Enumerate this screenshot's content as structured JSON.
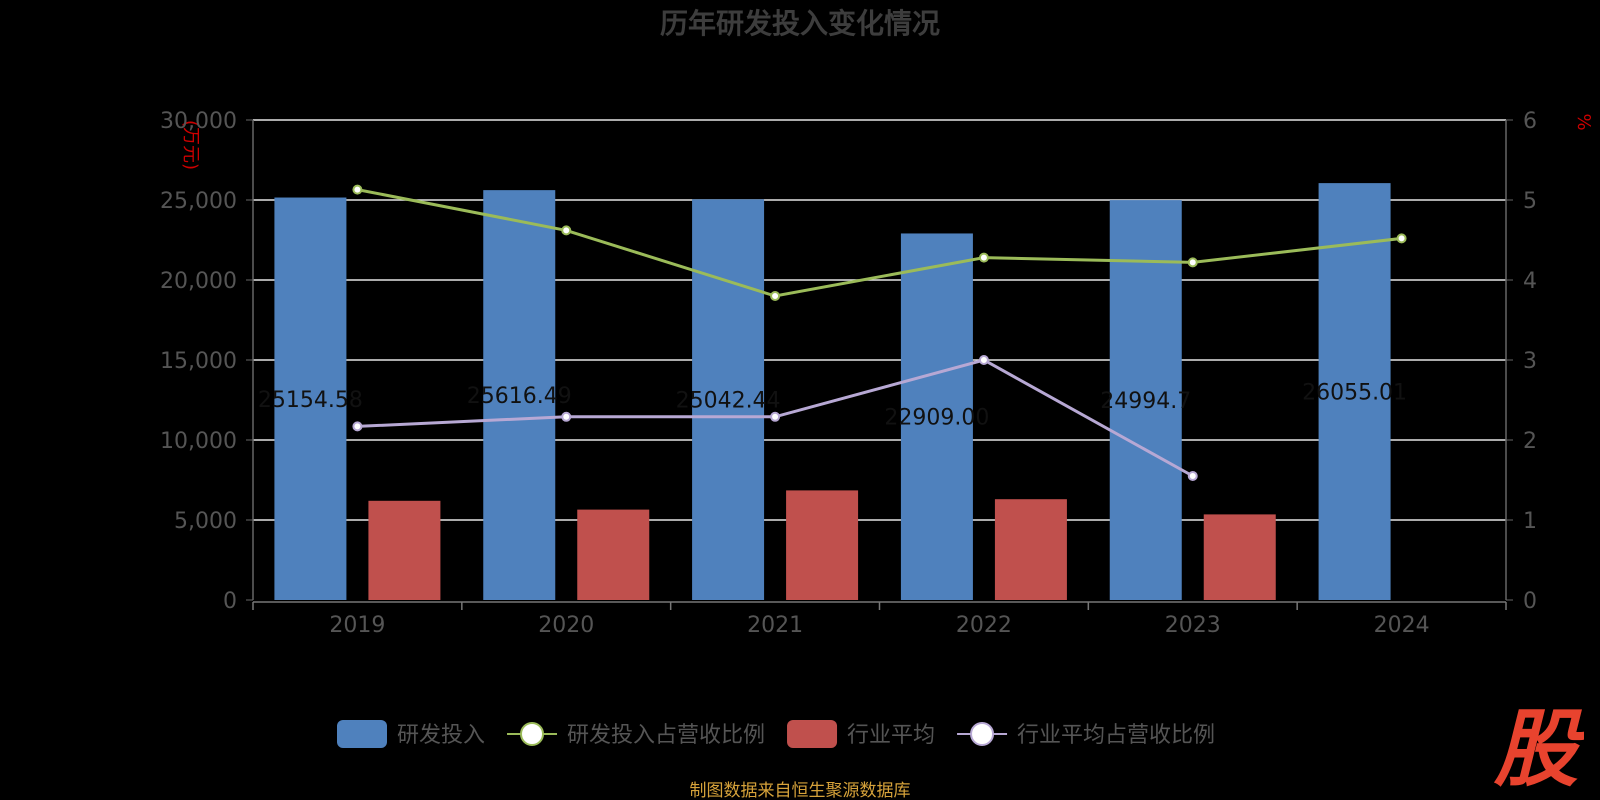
{
  "chart_data": {
    "type": "bar",
    "title": "历年研发投入变化情况",
    "left_axis_unit": "(万元)",
    "right_axis_unit": "%",
    "categories": [
      "2019",
      "2020",
      "2021",
      "2022",
      "2023",
      "2024"
    ],
    "ylim_left": [
      0,
      30000
    ],
    "yticks_left": [
      "0",
      "5,000",
      "10,000",
      "15,000",
      "20,000",
      "25,000",
      "30,000"
    ],
    "ylim_right": [
      0,
      6
    ],
    "yticks_right": [
      "0",
      "1",
      "2",
      "3",
      "4",
      "5",
      "6"
    ],
    "series": [
      {
        "name": "研发投入",
        "kind": "bar",
        "axis": "left",
        "color": "#4f81bd",
        "values": [
          25154.58,
          25616.49,
          25042.44,
          22909.0,
          24994.7,
          26055.01
        ],
        "labels": [
          "25154.58",
          "25616.49",
          "25042.44",
          "22909.00",
          "24994.7",
          "26055.01"
        ]
      },
      {
        "name": "研发投入占营收比例",
        "kind": "line",
        "axis": "right",
        "color": "#9bbb59",
        "values": [
          5.13,
          4.62,
          3.8,
          4.28,
          4.22,
          4.52
        ]
      },
      {
        "name": "行业平均",
        "kind": "bar",
        "axis": "left",
        "color": "#c0504d",
        "values": [
          6200,
          5650,
          6850,
          6300,
          5350,
          null
        ]
      },
      {
        "name": "行业平均占营收比例",
        "kind": "line",
        "axis": "right",
        "color": "#b7a8d4",
        "values": [
          2.17,
          2.29,
          2.29,
          3.0,
          1.55,
          null
        ]
      }
    ],
    "grid": true,
    "legend_position": "bottom"
  },
  "footer": {
    "source": "制图数据来自恒生聚源数据库"
  },
  "logo": {
    "text": "股",
    "color": "#e8432e"
  }
}
